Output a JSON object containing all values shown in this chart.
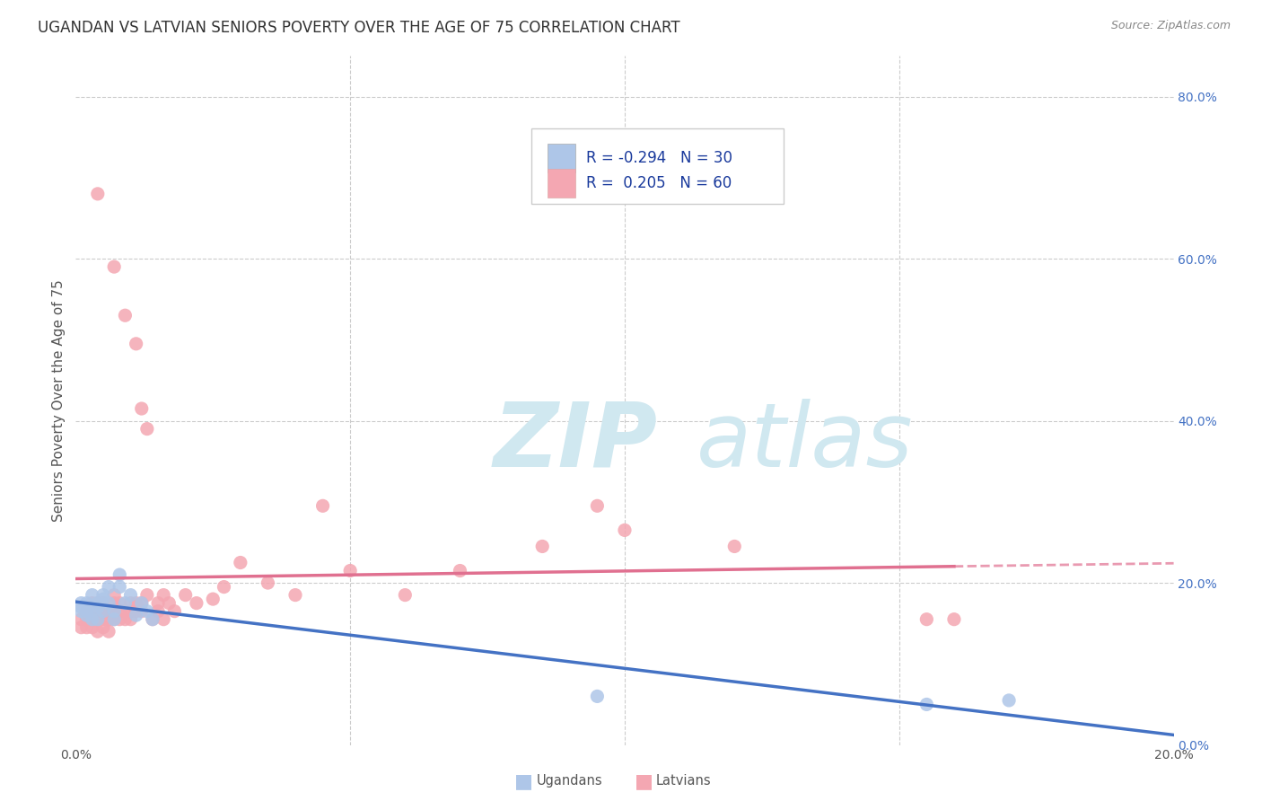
{
  "title": "UGANDAN VS LATVIAN SENIORS POVERTY OVER THE AGE OF 75 CORRELATION CHART",
  "source": "Source: ZipAtlas.com",
  "ylabel": "Seniors Poverty Over the Age of 75",
  "xlabel_ugandans": "Ugandans",
  "xlabel_latvians": "Latvians",
  "ugandan_R": -0.294,
  "ugandan_N": 30,
  "latvian_R": 0.205,
  "latvian_N": 60,
  "ugandan_color": "#aec6e8",
  "latvian_color": "#f4a7b2",
  "ugandan_line_color": "#4472c4",
  "latvian_line_color": "#e07090",
  "background_color": "#ffffff",
  "grid_color": "#cccccc",
  "xlim": [
    0.0,
    0.2
  ],
  "ylim": [
    0.0,
    0.85
  ],
  "right_yticks": [
    0.0,
    0.2,
    0.4,
    0.6,
    0.8
  ],
  "right_yticklabels": [
    "0.0%",
    "20.0%",
    "40.0%",
    "60.0%",
    "80.0%"
  ],
  "xticks": [
    0.0,
    0.05,
    0.1,
    0.15,
    0.2
  ],
  "xticklabels": [
    "0.0%",
    "",
    "",
    "",
    "20.0%"
  ],
  "ugandan_x": [
    0.001,
    0.001,
    0.001,
    0.002,
    0.002,
    0.002,
    0.003,
    0.003,
    0.003,
    0.004,
    0.004,
    0.004,
    0.005,
    0.005,
    0.005,
    0.006,
    0.006,
    0.007,
    0.007,
    0.008,
    0.008,
    0.009,
    0.01,
    0.011,
    0.012,
    0.013,
    0.014,
    0.095,
    0.155,
    0.17
  ],
  "ugandan_y": [
    0.17,
    0.165,
    0.175,
    0.16,
    0.165,
    0.175,
    0.155,
    0.17,
    0.185,
    0.155,
    0.175,
    0.17,
    0.165,
    0.18,
    0.185,
    0.195,
    0.175,
    0.155,
    0.165,
    0.21,
    0.195,
    0.175,
    0.185,
    0.16,
    0.175,
    0.165,
    0.155,
    0.06,
    0.05,
    0.055
  ],
  "latvian_x": [
    0.001,
    0.001,
    0.002,
    0.002,
    0.002,
    0.003,
    0.003,
    0.003,
    0.003,
    0.004,
    0.004,
    0.004,
    0.004,
    0.005,
    0.005,
    0.005,
    0.005,
    0.006,
    0.006,
    0.006,
    0.007,
    0.007,
    0.007,
    0.007,
    0.008,
    0.008,
    0.008,
    0.009,
    0.009,
    0.01,
    0.01,
    0.01,
    0.011,
    0.011,
    0.012,
    0.012,
    0.013,
    0.014,
    0.015,
    0.015,
    0.016,
    0.016,
    0.017,
    0.018,
    0.02,
    0.022,
    0.025,
    0.027,
    0.03,
    0.035,
    0.04,
    0.045,
    0.05,
    0.06,
    0.07,
    0.085,
    0.1,
    0.12,
    0.155,
    0.16
  ],
  "latvian_y": [
    0.155,
    0.145,
    0.145,
    0.155,
    0.165,
    0.155,
    0.165,
    0.175,
    0.145,
    0.155,
    0.165,
    0.175,
    0.14,
    0.155,
    0.165,
    0.175,
    0.145,
    0.14,
    0.155,
    0.165,
    0.155,
    0.165,
    0.175,
    0.185,
    0.155,
    0.165,
    0.175,
    0.155,
    0.165,
    0.155,
    0.165,
    0.175,
    0.165,
    0.175,
    0.165,
    0.175,
    0.185,
    0.155,
    0.165,
    0.175,
    0.185,
    0.155,
    0.175,
    0.165,
    0.185,
    0.175,
    0.18,
    0.195,
    0.225,
    0.2,
    0.185,
    0.295,
    0.215,
    0.185,
    0.215,
    0.245,
    0.265,
    0.245,
    0.155,
    0.155
  ],
  "latvian_outlier_x": [
    0.004,
    0.007,
    0.009,
    0.011,
    0.012,
    0.013,
    0.095
  ],
  "latvian_outlier_y": [
    0.68,
    0.59,
    0.53,
    0.495,
    0.415,
    0.39,
    0.295
  ],
  "watermark_zip": "ZIP",
  "watermark_atlas": "atlas",
  "watermark_color": "#d0e8f0",
  "title_fontsize": 12,
  "axis_label_fontsize": 11,
  "tick_fontsize": 10,
  "legend_fontsize": 12
}
